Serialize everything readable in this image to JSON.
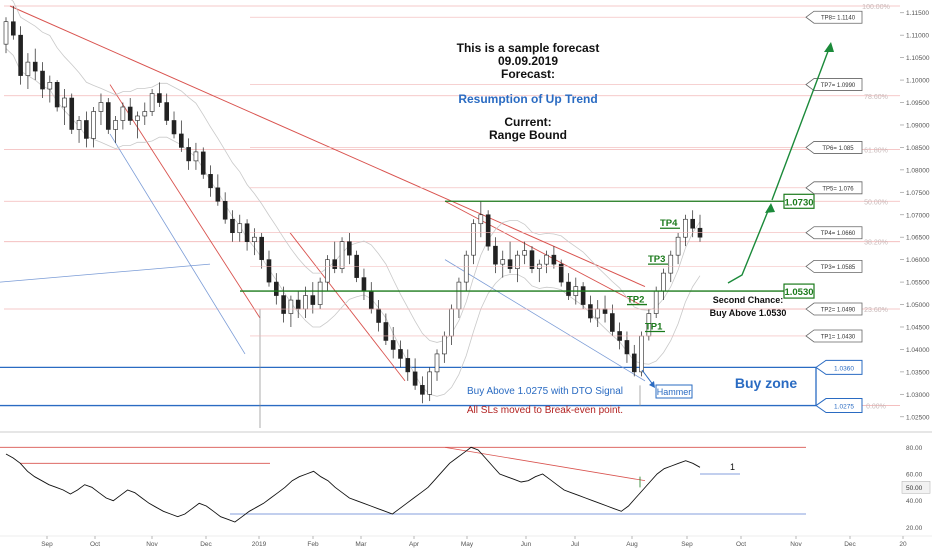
{
  "chart_data": {
    "type": "candlestick",
    "price_axis": {
      "range": [
        1.0225,
        1.1165
      ],
      "ticks": [
        "1.11500",
        "1.11000",
        "1.10500",
        "1.10000",
        "1.09500",
        "1.09000",
        "1.08500",
        "1.08000",
        "1.07500",
        "1.07000",
        "1.06500",
        "1.06000",
        "1.05500",
        "1.05000",
        "1.04500",
        "1.04000",
        "1.03500",
        "1.03000",
        "1.02500"
      ]
    },
    "time_axis": {
      "labels": [
        "Sep",
        "Oct",
        "Nov",
        "Dec",
        "2019",
        "Feb",
        "Mar",
        "Apr",
        "May",
        "Jun",
        "Jul",
        "Aug",
        "Sep",
        "Oct",
        "Nov",
        "Dec",
        "20"
      ]
    },
    "fib_levels": [
      {
        "label": "100.00%",
        "value": 1.1165
      },
      {
        "label": "78.60%",
        "value": 1.0965
      },
      {
        "label": "61.80%",
        "value": 1.0845
      },
      {
        "label": "50.00%",
        "value": 1.073
      },
      {
        "label": "38.20%",
        "value": 1.064
      },
      {
        "label": "23.60%",
        "value": 1.049
      },
      {
        "label": "0.00%",
        "value": 1.0275
      }
    ],
    "tp_levels": [
      {
        "tag": "TP8= 1.1140",
        "value": 1.114
      },
      {
        "tag": "TP7= 1.0990",
        "value": 1.099
      },
      {
        "tag": "TP6= 1.085",
        "value": 1.085
      },
      {
        "tag": "TP5= 1.076",
        "value": 1.076
      },
      {
        "tag": "TP4= 1.0660",
        "value": 1.066
      },
      {
        "tag": "TP3= 1.0585",
        "value": 1.0585
      },
      {
        "tag": "TP2= 1.0490",
        "value": 1.049
      },
      {
        "tag": "TP1= 1.0430",
        "value": 1.043
      }
    ],
    "key_levels": [
      {
        "label": "1.0730",
        "value": 1.073,
        "color": "#1b7a1b"
      },
      {
        "label": "1.0530",
        "value": 1.053,
        "color": "#1b7a1b"
      }
    ],
    "buy_zone": {
      "label": "Buy zone",
      "top": 1.036,
      "bottom": 1.0275,
      "top_tag": "1.0360",
      "bottom_tag": "1.0275"
    },
    "tp_marks": [
      "TP4",
      "TP3",
      "TP2",
      "TP1"
    ],
    "annotations": {
      "sample_line1": "This is a sample forecast",
      "sample_date": "09.09.2019",
      "forecast_label": "Forecast:",
      "forecast_value": "Resumption of Up Trend",
      "current_label": "Current:",
      "current_value": "Range Bound",
      "second_chance_1": "Second Chance:",
      "second_chance_2": "Buy Above 1.0530",
      "buy_above": "Buy Above 1.0275 with DTO Signal",
      "sl_note": "All SLs moved to Break-even point.",
      "hammer": "Hammer"
    },
    "candles": [
      {
        "o": 1.108,
        "h": 1.114,
        "l": 1.106,
        "c": 1.113
      },
      {
        "o": 1.113,
        "h": 1.1165,
        "l": 1.109,
        "c": 1.11
      },
      {
        "o": 1.11,
        "h": 1.112,
        "l": 1.099,
        "c": 1.101
      },
      {
        "o": 1.101,
        "h": 1.106,
        "l": 1.098,
        "c": 1.104
      },
      {
        "o": 1.104,
        "h": 1.107,
        "l": 1.1,
        "c": 1.102
      },
      {
        "o": 1.102,
        "h": 1.104,
        "l": 1.096,
        "c": 1.098
      },
      {
        "o": 1.098,
        "h": 1.101,
        "l": 1.095,
        "c": 1.0995
      },
      {
        "o": 1.0995,
        "h": 1.1,
        "l": 1.093,
        "c": 1.094
      },
      {
        "o": 1.094,
        "h": 1.098,
        "l": 1.09,
        "c": 1.096
      },
      {
        "o": 1.096,
        "h": 1.097,
        "l": 1.088,
        "c": 1.089
      },
      {
        "o": 1.089,
        "h": 1.092,
        "l": 1.086,
        "c": 1.091
      },
      {
        "o": 1.091,
        "h": 1.093,
        "l": 1.085,
        "c": 1.087
      },
      {
        "o": 1.087,
        "h": 1.094,
        "l": 1.085,
        "c": 1.093
      },
      {
        "o": 1.093,
        "h": 1.097,
        "l": 1.09,
        "c": 1.095
      },
      {
        "o": 1.095,
        "h": 1.096,
        "l": 1.088,
        "c": 1.089
      },
      {
        "o": 1.089,
        "h": 1.092,
        "l": 1.086,
        "c": 1.091
      },
      {
        "o": 1.091,
        "h": 1.095,
        "l": 1.089,
        "c": 1.094
      },
      {
        "o": 1.094,
        "h": 1.096,
        "l": 1.09,
        "c": 1.091
      },
      {
        "o": 1.091,
        "h": 1.093,
        "l": 1.087,
        "c": 1.092
      },
      {
        "o": 1.092,
        "h": 1.095,
        "l": 1.09,
        "c": 1.093
      },
      {
        "o": 1.093,
        "h": 1.098,
        "l": 1.092,
        "c": 1.097
      },
      {
        "o": 1.097,
        "h": 1.0995,
        "l": 1.094,
        "c": 1.095
      },
      {
        "o": 1.095,
        "h": 1.097,
        "l": 1.09,
        "c": 1.091
      },
      {
        "o": 1.091,
        "h": 1.093,
        "l": 1.087,
        "c": 1.088
      },
      {
        "o": 1.088,
        "h": 1.091,
        "l": 1.084,
        "c": 1.085
      },
      {
        "o": 1.085,
        "h": 1.087,
        "l": 1.08,
        "c": 1.082
      },
      {
        "o": 1.082,
        "h": 1.086,
        "l": 1.08,
        "c": 1.084
      },
      {
        "o": 1.084,
        "h": 1.085,
        "l": 1.078,
        "c": 1.079
      },
      {
        "o": 1.079,
        "h": 1.081,
        "l": 1.074,
        "c": 1.076
      },
      {
        "o": 1.076,
        "h": 1.079,
        "l": 1.072,
        "c": 1.073
      },
      {
        "o": 1.073,
        "h": 1.075,
        "l": 1.068,
        "c": 1.069
      },
      {
        "o": 1.069,
        "h": 1.071,
        "l": 1.064,
        "c": 1.066
      },
      {
        "o": 1.066,
        "h": 1.07,
        "l": 1.064,
        "c": 1.068
      },
      {
        "o": 1.068,
        "h": 1.069,
        "l": 1.062,
        "c": 1.064
      },
      {
        "o": 1.064,
        "h": 1.067,
        "l": 1.061,
        "c": 1.065
      },
      {
        "o": 1.065,
        "h": 1.066,
        "l": 1.058,
        "c": 1.06
      },
      {
        "o": 1.06,
        "h": 1.062,
        "l": 1.054,
        "c": 1.055
      },
      {
        "o": 1.055,
        "h": 1.057,
        "l": 1.05,
        "c": 1.052
      },
      {
        "o": 1.052,
        "h": 1.054,
        "l": 1.046,
        "c": 1.048
      },
      {
        "o": 1.048,
        "h": 1.052,
        "l": 1.045,
        "c": 1.051
      },
      {
        "o": 1.051,
        "h": 1.053,
        "l": 1.047,
        "c": 1.049
      },
      {
        "o": 1.049,
        "h": 1.054,
        "l": 1.047,
        "c": 1.052
      },
      {
        "o": 1.052,
        "h": 1.055,
        "l": 1.048,
        "c": 1.05
      },
      {
        "o": 1.05,
        "h": 1.056,
        "l": 1.049,
        "c": 1.055
      },
      {
        "o": 1.055,
        "h": 1.061,
        "l": 1.053,
        "c": 1.06
      },
      {
        "o": 1.06,
        "h": 1.064,
        "l": 1.057,
        "c": 1.058
      },
      {
        "o": 1.058,
        "h": 1.065,
        "l": 1.057,
        "c": 1.064
      },
      {
        "o": 1.064,
        "h": 1.066,
        "l": 1.059,
        "c": 1.061
      },
      {
        "o": 1.061,
        "h": 1.062,
        "l": 1.055,
        "c": 1.056
      },
      {
        "o": 1.056,
        "h": 1.058,
        "l": 1.051,
        "c": 1.053
      },
      {
        "o": 1.053,
        "h": 1.055,
        "l": 1.048,
        "c": 1.049
      },
      {
        "o": 1.049,
        "h": 1.051,
        "l": 1.044,
        "c": 1.046
      },
      {
        "o": 1.046,
        "h": 1.048,
        "l": 1.041,
        "c": 1.042
      },
      {
        "o": 1.042,
        "h": 1.045,
        "l": 1.038,
        "c": 1.04
      },
      {
        "o": 1.04,
        "h": 1.042,
        "l": 1.036,
        "c": 1.038
      },
      {
        "o": 1.038,
        "h": 1.04,
        "l": 1.033,
        "c": 1.035
      },
      {
        "o": 1.035,
        "h": 1.038,
        "l": 1.031,
        "c": 1.032
      },
      {
        "o": 1.032,
        "h": 1.034,
        "l": 1.028,
        "c": 1.03
      },
      {
        "o": 1.03,
        "h": 1.036,
        "l": 1.0285,
        "c": 1.035
      },
      {
        "o": 1.035,
        "h": 1.04,
        "l": 1.033,
        "c": 1.039
      },
      {
        "o": 1.039,
        "h": 1.044,
        "l": 1.037,
        "c": 1.043
      },
      {
        "o": 1.043,
        "h": 1.05,
        "l": 1.041,
        "c": 1.049
      },
      {
        "o": 1.049,
        "h": 1.056,
        "l": 1.047,
        "c": 1.055
      },
      {
        "o": 1.055,
        "h": 1.062,
        "l": 1.053,
        "c": 1.061
      },
      {
        "o": 1.061,
        "h": 1.069,
        "l": 1.059,
        "c": 1.068
      },
      {
        "o": 1.068,
        "h": 1.073,
        "l": 1.065,
        "c": 1.07
      },
      {
        "o": 1.07,
        "h": 1.071,
        "l": 1.062,
        "c": 1.063
      },
      {
        "o": 1.063,
        "h": 1.065,
        "l": 1.057,
        "c": 1.059
      },
      {
        "o": 1.059,
        "h": 1.062,
        "l": 1.056,
        "c": 1.06
      },
      {
        "o": 1.06,
        "h": 1.064,
        "l": 1.057,
        "c": 1.058
      },
      {
        "o": 1.058,
        "h": 1.062,
        "l": 1.055,
        "c": 1.061
      },
      {
        "o": 1.061,
        "h": 1.064,
        "l": 1.059,
        "c": 1.062
      },
      {
        "o": 1.062,
        "h": 1.063,
        "l": 1.057,
        "c": 1.058
      },
      {
        "o": 1.058,
        "h": 1.06,
        "l": 1.055,
        "c": 1.059
      },
      {
        "o": 1.059,
        "h": 1.062,
        "l": 1.057,
        "c": 1.061
      },
      {
        "o": 1.061,
        "h": 1.063,
        "l": 1.058,
        "c": 1.059
      },
      {
        "o": 1.059,
        "h": 1.06,
        "l": 1.054,
        "c": 1.055
      },
      {
        "o": 1.055,
        "h": 1.057,
        "l": 1.051,
        "c": 1.052
      },
      {
        "o": 1.052,
        "h": 1.056,
        "l": 1.05,
        "c": 1.054
      },
      {
        "o": 1.054,
        "h": 1.055,
        "l": 1.049,
        "c": 1.05
      },
      {
        "o": 1.05,
        "h": 1.052,
        "l": 1.046,
        "c": 1.047
      },
      {
        "o": 1.047,
        "h": 1.051,
        "l": 1.045,
        "c": 1.049
      },
      {
        "o": 1.049,
        "h": 1.052,
        "l": 1.046,
        "c": 1.048
      },
      {
        "o": 1.048,
        "h": 1.05,
        "l": 1.043,
        "c": 1.044
      },
      {
        "o": 1.044,
        "h": 1.046,
        "l": 1.04,
        "c": 1.042
      },
      {
        "o": 1.042,
        "h": 1.044,
        "l": 1.037,
        "c": 1.039
      },
      {
        "o": 1.039,
        "h": 1.041,
        "l": 1.034,
        "c": 1.035
      },
      {
        "o": 1.035,
        "h": 1.044,
        "l": 1.034,
        "c": 1.043
      },
      {
        "o": 1.043,
        "h": 1.049,
        "l": 1.042,
        "c": 1.048
      },
      {
        "o": 1.048,
        "h": 1.054,
        "l": 1.047,
        "c": 1.053
      },
      {
        "o": 1.053,
        "h": 1.058,
        "l": 1.051,
        "c": 1.057
      },
      {
        "o": 1.057,
        "h": 1.062,
        "l": 1.055,
        "c": 1.061
      },
      {
        "o": 1.061,
        "h": 1.066,
        "l": 1.059,
        "c": 1.065
      },
      {
        "o": 1.065,
        "h": 1.07,
        "l": 1.063,
        "c": 1.069
      },
      {
        "o": 1.069,
        "h": 1.071,
        "l": 1.065,
        "c": 1.067
      },
      {
        "o": 1.067,
        "h": 1.07,
        "l": 1.064,
        "c": 1.065
      }
    ],
    "dto_axis": {
      "range": [
        15,
        90
      ],
      "ticks": [
        "80.00",
        "60.00",
        "40.00",
        "20.00"
      ],
      "current_tag": "50.00"
    },
    "dto_values": [
      75,
      72,
      68,
      62,
      58,
      55,
      52,
      50,
      48,
      45,
      48,
      52,
      50,
      46,
      42,
      40,
      44,
      48,
      46,
      42,
      38,
      35,
      32,
      30,
      28,
      30,
      34,
      38,
      36,
      32,
      28,
      26,
      24,
      28,
      32,
      35,
      38,
      42,
      46,
      50,
      55,
      58,
      60,
      62,
      58,
      55,
      50,
      46,
      42,
      40,
      38,
      36,
      34,
      32,
      30,
      34,
      38,
      42,
      46,
      50,
      56,
      62,
      68,
      72,
      76,
      80,
      78,
      72,
      66,
      60,
      58,
      56,
      54,
      55,
      58,
      60,
      56,
      52,
      48,
      46,
      44,
      42,
      40,
      38,
      36,
      34,
      32,
      36,
      42,
      48,
      54,
      60,
      64,
      66,
      68,
      70,
      68,
      65
    ],
    "dto_marker_label": "1"
  }
}
